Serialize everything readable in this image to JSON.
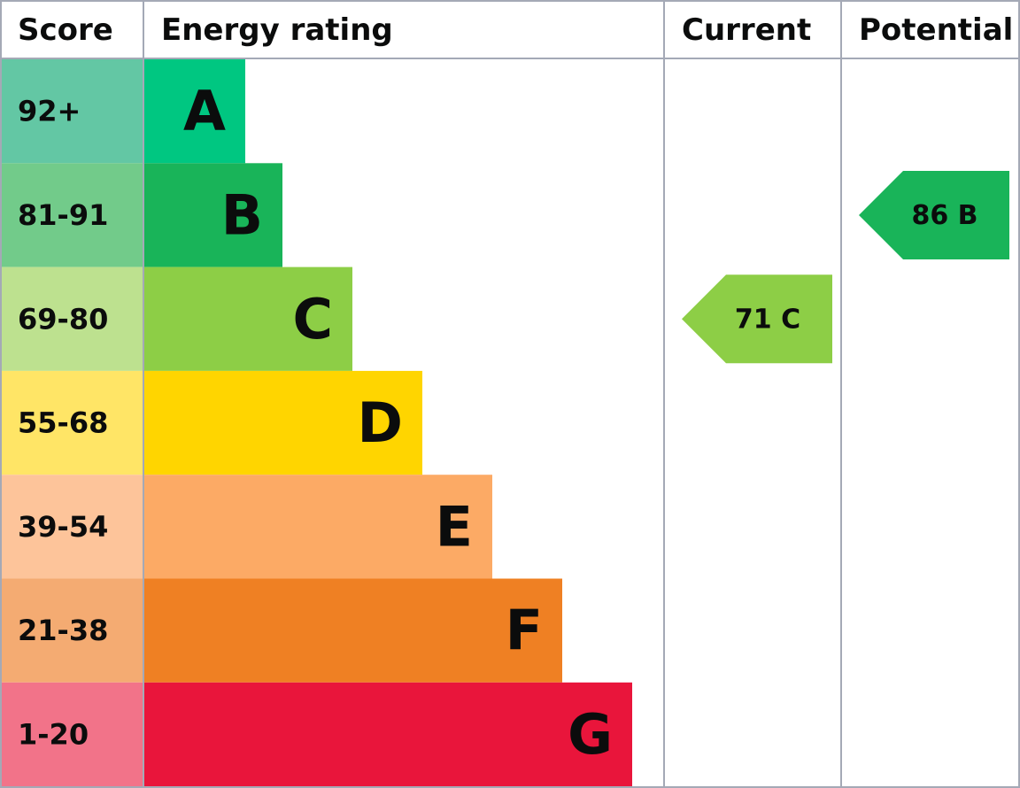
{
  "header": {
    "score": "Score",
    "rating": "Energy rating",
    "current": "Current",
    "potential": "Potential"
  },
  "bands": [
    {
      "score": "92+",
      "letter": "A",
      "color": "#00c781",
      "score_color": "#63c7a4"
    },
    {
      "score": "81-91",
      "letter": "B",
      "color": "#19b459",
      "score_color": "#72cb8a"
    },
    {
      "score": "69-80",
      "letter": "C",
      "color": "#8dce46",
      "score_color": "#bde18f"
    },
    {
      "score": "55-68",
      "letter": "D",
      "color": "#ffd500",
      "score_color": "#ffe566"
    },
    {
      "score": "39-54",
      "letter": "E",
      "color": "#fcaa65",
      "score_color": "#fdc49a"
    },
    {
      "score": "21-38",
      "letter": "F",
      "color": "#ef8023",
      "score_color": "#f4ab72"
    },
    {
      "score": "1-20",
      "letter": "G",
      "color": "#e9153b",
      "score_color": "#f27389"
    }
  ],
  "current": {
    "value": 71,
    "letter": "C"
  },
  "potential": {
    "value": 86,
    "letter": "B"
  }
}
